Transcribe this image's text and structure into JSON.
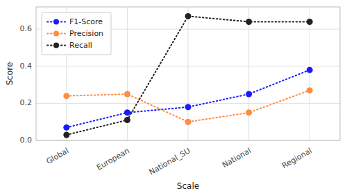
{
  "chart_data": {
    "type": "line",
    "xlabel": "Scale",
    "ylabel": "Score",
    "categories": [
      "Global",
      "European",
      "National_SU",
      "National",
      "Regional"
    ],
    "series": [
      {
        "name": "F1-Score",
        "color": "#1a1aff",
        "values": [
          0.07,
          0.15,
          0.18,
          0.25,
          0.38
        ]
      },
      {
        "name": "Precision",
        "color": "#ff8c40",
        "values": [
          0.24,
          0.25,
          0.1,
          0.15,
          0.27
        ]
      },
      {
        "name": "Recall",
        "color": "#222222",
        "values": [
          0.03,
          0.11,
          0.67,
          0.64,
          0.64
        ]
      }
    ],
    "ylim": [
      0.0,
      0.72
    ],
    "yticks": [
      {
        "value": 0.0,
        "label": "0.0"
      },
      0.2,
      0.4,
      0.6
    ],
    "grid": true,
    "legend": "upper left",
    "marker": "circle",
    "line_style": "dotted"
  }
}
